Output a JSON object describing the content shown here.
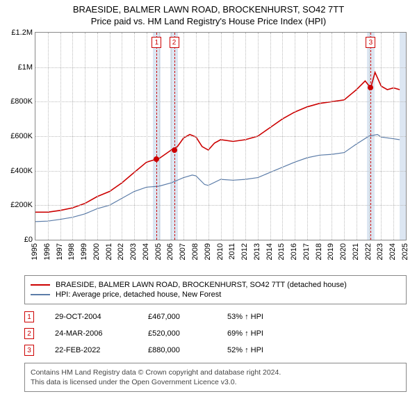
{
  "title_main": "BRAESIDE, BALMER LAWN ROAD, BROCKENHURST, SO42 7TT",
  "title_sub": "Price paid vs. HM Land Registry's House Price Index (HPI)",
  "chart": {
    "type": "line",
    "background_color": "#ffffff",
    "grid_color": "#bbbbbb",
    "border_color": "#888888",
    "x_years": [
      1995,
      1996,
      1997,
      1998,
      1999,
      2000,
      2001,
      2002,
      2003,
      2004,
      2005,
      2006,
      2007,
      2008,
      2009,
      2010,
      2011,
      2012,
      2013,
      2014,
      2015,
      2016,
      2017,
      2018,
      2019,
      2020,
      2021,
      2022,
      2023,
      2024,
      2025
    ],
    "x_min": 1995,
    "x_max": 2025,
    "y_ticks": [
      0,
      200000,
      400000,
      600000,
      800000,
      1000000,
      1200000
    ],
    "y_tick_labels": [
      "£0",
      "£200K",
      "£400K",
      "£600K",
      "£800K",
      "£1M",
      "£1.2M"
    ],
    "y_min": 0,
    "y_max": 1200000,
    "event_band_color": "#dce6f2",
    "event_line_color": "#cc0000",
    "marker_fill": "#cc0000",
    "label_fontsize": 11,
    "title_fontsize": 13,
    "series": [
      {
        "name": "property",
        "color": "#cc0000",
        "width": 1.6,
        "points": [
          [
            1995,
            160000
          ],
          [
            1996,
            160000
          ],
          [
            1997,
            170000
          ],
          [
            1998,
            185000
          ],
          [
            1999,
            210000
          ],
          [
            2000,
            250000
          ],
          [
            2001,
            280000
          ],
          [
            2002,
            330000
          ],
          [
            2003,
            390000
          ],
          [
            2004,
            450000
          ],
          [
            2004.8,
            467000
          ],
          [
            2005,
            470000
          ],
          [
            2006,
            520000
          ],
          [
            2006.5,
            540000
          ],
          [
            2007,
            590000
          ],
          [
            2007.5,
            610000
          ],
          [
            2008,
            595000
          ],
          [
            2008.5,
            540000
          ],
          [
            2009,
            520000
          ],
          [
            2009.5,
            560000
          ],
          [
            2010,
            580000
          ],
          [
            2011,
            570000
          ],
          [
            2012,
            580000
          ],
          [
            2013,
            600000
          ],
          [
            2014,
            650000
          ],
          [
            2015,
            700000
          ],
          [
            2016,
            740000
          ],
          [
            2017,
            770000
          ],
          [
            2018,
            790000
          ],
          [
            2019,
            800000
          ],
          [
            2020,
            810000
          ],
          [
            2021,
            870000
          ],
          [
            2021.7,
            920000
          ],
          [
            2022.15,
            880000
          ],
          [
            2022.5,
            970000
          ],
          [
            2023,
            890000
          ],
          [
            2023.5,
            870000
          ],
          [
            2024,
            880000
          ],
          [
            2024.5,
            870000
          ]
        ]
      },
      {
        "name": "hpi",
        "color": "#5b7ca8",
        "width": 1.2,
        "points": [
          [
            1995,
            105000
          ],
          [
            1996,
            108000
          ],
          [
            1997,
            118000
          ],
          [
            1998,
            130000
          ],
          [
            1999,
            150000
          ],
          [
            2000,
            180000
          ],
          [
            2001,
            200000
          ],
          [
            2002,
            240000
          ],
          [
            2003,
            280000
          ],
          [
            2004,
            305000
          ],
          [
            2005,
            310000
          ],
          [
            2006,
            330000
          ],
          [
            2007,
            360000
          ],
          [
            2007.7,
            375000
          ],
          [
            2008,
            370000
          ],
          [
            2008.7,
            320000
          ],
          [
            2009,
            315000
          ],
          [
            2010,
            350000
          ],
          [
            2011,
            345000
          ],
          [
            2012,
            350000
          ],
          [
            2013,
            360000
          ],
          [
            2014,
            390000
          ],
          [
            2015,
            420000
          ],
          [
            2016,
            450000
          ],
          [
            2017,
            475000
          ],
          [
            2018,
            490000
          ],
          [
            2019,
            495000
          ],
          [
            2020,
            505000
          ],
          [
            2021,
            555000
          ],
          [
            2022,
            600000
          ],
          [
            2022.7,
            610000
          ],
          [
            2023,
            595000
          ],
          [
            2024,
            585000
          ],
          [
            2024.5,
            580000
          ]
        ]
      }
    ],
    "events": [
      {
        "n": "1",
        "x": 2004.82,
        "band_width_years": 0.6
      },
      {
        "n": "2",
        "x": 2006.23,
        "band_width_years": 0.6
      },
      {
        "n": "3",
        "x": 2022.15,
        "band_width_years": 0.6
      }
    ],
    "end_band": {
      "x_start": 2024.5,
      "x_end": 2025
    },
    "sale_markers": [
      {
        "x": 2004.82,
        "y": 467000
      },
      {
        "x": 2006.23,
        "y": 520000
      },
      {
        "x": 2022.15,
        "y": 880000
      }
    ]
  },
  "legend": {
    "items": [
      {
        "color": "#cc0000",
        "label": "BRAESIDE, BALMER LAWN ROAD, BROCKENHURST, SO42 7TT (detached house)"
      },
      {
        "color": "#5b7ca8",
        "label": "HPI: Average price, detached house, New Forest"
      }
    ]
  },
  "events_table": {
    "rows": [
      {
        "n": "1",
        "date": "29-OCT-2004",
        "price": "£467,000",
        "delta": "53% ↑ HPI"
      },
      {
        "n": "2",
        "date": "24-MAR-2006",
        "price": "£520,000",
        "delta": "69% ↑ HPI"
      },
      {
        "n": "3",
        "date": "22-FEB-2022",
        "price": "£880,000",
        "delta": "52% ↑ HPI"
      }
    ]
  },
  "footer": {
    "line1": "Contains HM Land Registry data © Crown copyright and database right 2024.",
    "line2": "This data is licensed under the Open Government Licence v3.0."
  }
}
